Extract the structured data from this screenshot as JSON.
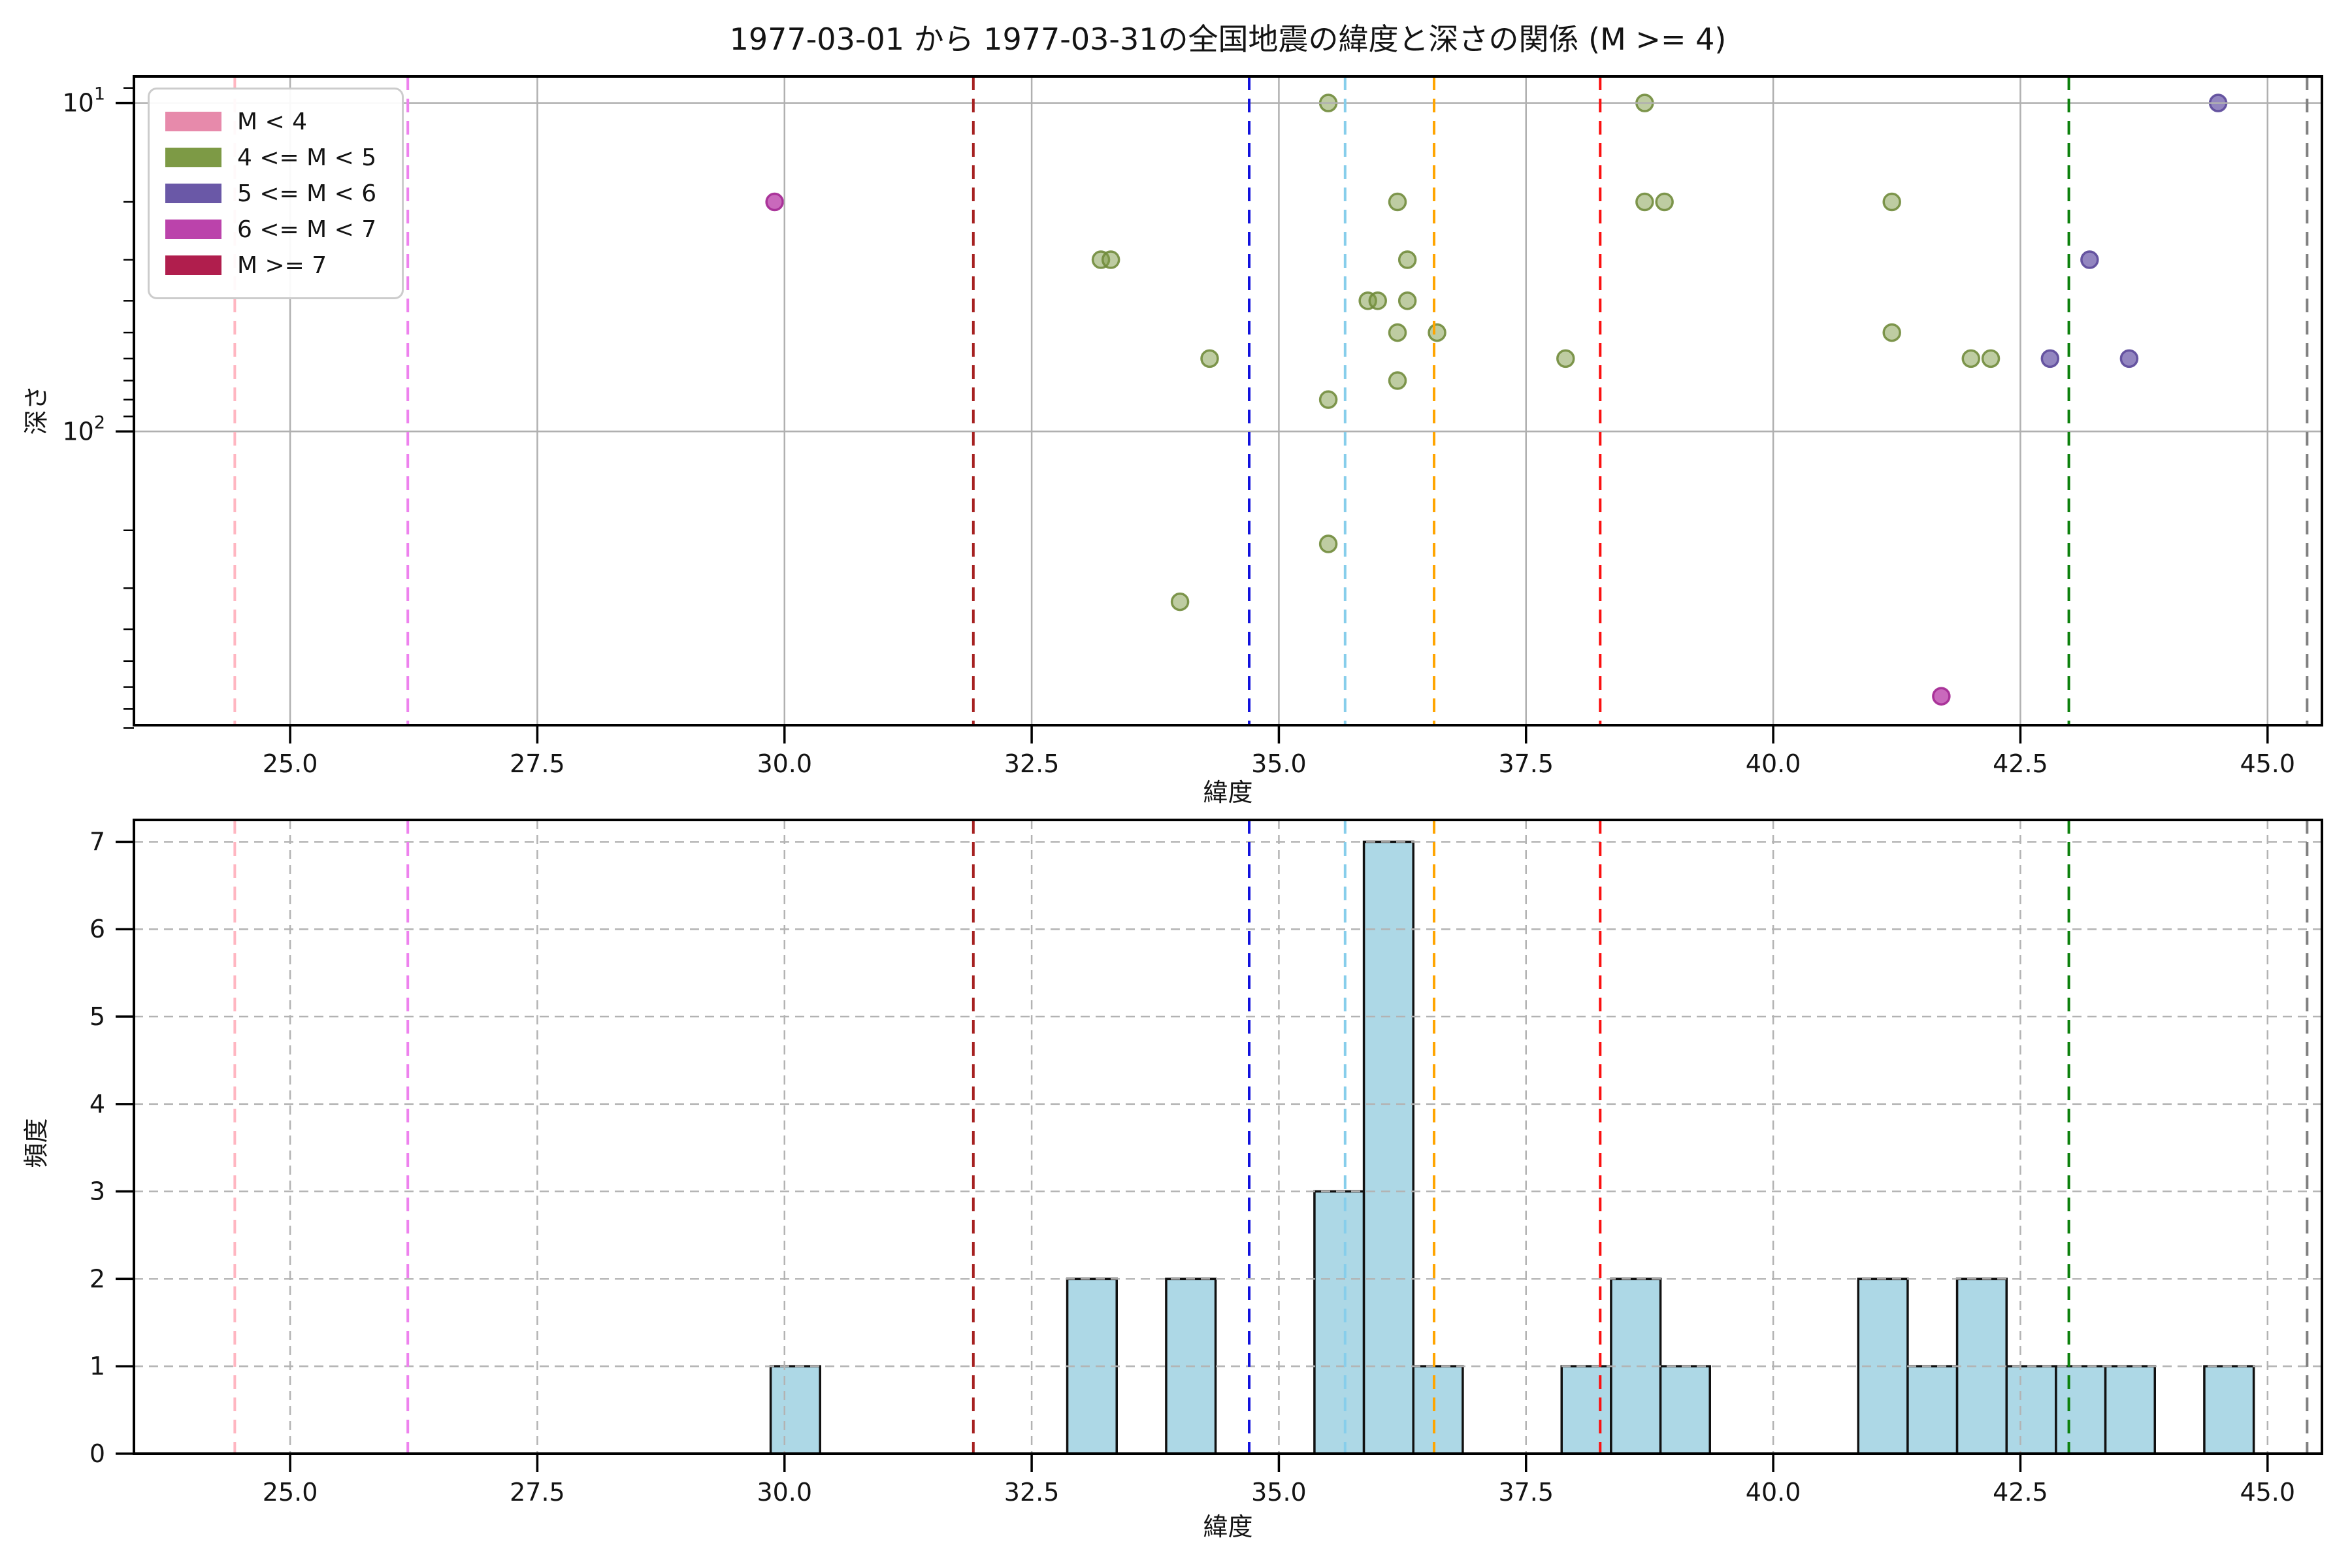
{
  "figure_title": "1977-03-01 から 1977-03-31の全国地震の緯度と深さの関係 (M >= 4)",
  "legend": {
    "items": [
      {
        "label": "M < 4",
        "color": "#e78aab"
      },
      {
        "label": "4 <= M < 5",
        "color": "#7d9a45"
      },
      {
        "label": "5 <= M < 6",
        "color": "#6a58a7"
      },
      {
        "label": "6 <= M < 7",
        "color": "#bb43ab"
      },
      {
        "label": "M >= 7",
        "color": "#b01e4d"
      }
    ]
  },
  "chart_data": [
    {
      "type": "scatter",
      "title": "1977-03-01 から 1977-03-31の全国地震の緯度と深さの関係 (M >= 4)",
      "xlabel": "緯度",
      "ylabel": "深さ",
      "xlim": [
        23.42,
        45.55
      ],
      "ylim": [
        8.3,
        784
      ],
      "yscale": "log",
      "y_inverted": true,
      "grid": "solid",
      "x_ticks": [
        {
          "value": 25.0,
          "label": "25.0"
        },
        {
          "value": 27.5,
          "label": "27.5"
        },
        {
          "value": 30.0,
          "label": "30.0"
        },
        {
          "value": 32.5,
          "label": "32.5"
        },
        {
          "value": 35.0,
          "label": "35.0"
        },
        {
          "value": 37.5,
          "label": "37.5"
        },
        {
          "value": 40.0,
          "label": "40.0"
        },
        {
          "value": 42.5,
          "label": "42.5"
        },
        {
          "value": 45.0,
          "label": "45.0"
        }
      ],
      "y_ticks": [
        {
          "value": 10,
          "base": "10",
          "exponent": "1"
        },
        {
          "value": 100,
          "base": "10",
          "exponent": "2"
        }
      ],
      "y_minor_ticks": [
        9,
        20,
        30,
        40,
        50,
        60,
        70,
        80,
        90,
        200,
        300,
        400,
        500,
        600,
        700,
        800
      ],
      "series": [
        {
          "name": "4 <= M < 5",
          "fill": "rgba(125,154,69,0.5)",
          "stroke": "rgba(113,140,60,0.9)",
          "points": [
            [
              33.2,
              30
            ],
            [
              33.3,
              30
            ],
            [
              34.0,
              330
            ],
            [
              34.3,
              60
            ],
            [
              35.5,
              10
            ],
            [
              35.5,
              80
            ],
            [
              35.5,
              220
            ],
            [
              35.9,
              40
            ],
            [
              36.0,
              40
            ],
            [
              36.2,
              20
            ],
            [
              36.2,
              50
            ],
            [
              36.2,
              70
            ],
            [
              36.3,
              30
            ],
            [
              36.3,
              40
            ],
            [
              36.6,
              50
            ],
            [
              37.9,
              60
            ],
            [
              38.7,
              10
            ],
            [
              38.7,
              20
            ],
            [
              38.9,
              20
            ],
            [
              41.2,
              20
            ],
            [
              41.2,
              50
            ],
            [
              42.0,
              60
            ],
            [
              42.2,
              60
            ]
          ]
        },
        {
          "name": "5 <= M < 6",
          "fill": "rgba(106,88,167,0.72)",
          "stroke": "rgba(96,78,157,0.95)",
          "points": [
            [
              42.8,
              60
            ],
            [
              43.2,
              30
            ],
            [
              43.6,
              60
            ],
            [
              44.5,
              10
            ]
          ]
        },
        {
          "name": "6 <= M < 7",
          "fill": "rgba(187,67,171,0.8)",
          "stroke": "rgba(167,45,150,0.95)",
          "points": [
            [
              29.9,
              20
            ],
            [
              41.7,
              640
            ]
          ]
        }
      ]
    },
    {
      "type": "bar",
      "xlabel": "緯度",
      "ylabel": "頻度",
      "xlim": [
        23.42,
        45.55
      ],
      "ylim": [
        0,
        7.25
      ],
      "grid": "dashed",
      "x_ticks": [
        {
          "value": 25.0,
          "label": "25.0"
        },
        {
          "value": 27.5,
          "label": "27.5"
        },
        {
          "value": 30.0,
          "label": "30.0"
        },
        {
          "value": 32.5,
          "label": "32.5"
        },
        {
          "value": 35.0,
          "label": "35.0"
        },
        {
          "value": 37.5,
          "label": "37.5"
        },
        {
          "value": 40.0,
          "label": "40.0"
        },
        {
          "value": 42.5,
          "label": "42.5"
        },
        {
          "value": 45.0,
          "label": "45.0"
        }
      ],
      "y_ticks": [
        {
          "value": 0,
          "label": "0"
        },
        {
          "value": 1,
          "label": "1"
        },
        {
          "value": 2,
          "label": "2"
        },
        {
          "value": 3,
          "label": "3"
        },
        {
          "value": 4,
          "label": "4"
        },
        {
          "value": 5,
          "label": "5"
        },
        {
          "value": 6,
          "label": "6"
        },
        {
          "value": 7,
          "label": "7"
        }
      ],
      "bin_width": 0.5,
      "bars": [
        {
          "left": 29.86,
          "height": 1
        },
        {
          "left": 32.86,
          "height": 2
        },
        {
          "left": 33.86,
          "height": 2
        },
        {
          "left": 35.36,
          "height": 3
        },
        {
          "left": 35.86,
          "height": 7
        },
        {
          "left": 36.36,
          "height": 1
        },
        {
          "left": 37.86,
          "height": 1
        },
        {
          "left": 38.36,
          "height": 2
        },
        {
          "left": 38.86,
          "height": 1
        },
        {
          "left": 40.86,
          "height": 2
        },
        {
          "left": 41.36,
          "height": 1
        },
        {
          "left": 41.86,
          "height": 2
        },
        {
          "left": 42.36,
          "height": 1
        },
        {
          "left": 42.86,
          "height": 1
        },
        {
          "left": 43.36,
          "height": 1
        },
        {
          "left": 44.36,
          "height": 1
        }
      ],
      "bar_fill": "#add8e6",
      "bar_edge": "#111111"
    }
  ],
  "reference_lines": [
    {
      "x": 24.44,
      "color": "#ffb6c1",
      "name": "pink"
    },
    {
      "x": 26.19,
      "color": "#ee82ee",
      "name": "violet"
    },
    {
      "x": 31.91,
      "color": "#a62121",
      "name": "darkred"
    },
    {
      "x": 34.7,
      "color": "#1010dc",
      "name": "blue"
    },
    {
      "x": 35.67,
      "color": "#87ceeb",
      "name": "skyblue"
    },
    {
      "x": 36.57,
      "color": "#ffa500",
      "name": "orange"
    },
    {
      "x": 38.25,
      "color": "#fb1010",
      "name": "red"
    },
    {
      "x": 42.99,
      "color": "#0b800b",
      "name": "green"
    },
    {
      "x": 45.4,
      "color": "#808080",
      "name": "gray"
    }
  ],
  "style_colors": {
    "grid_top": "#b0b0b0",
    "grid_bottom": "#b3b3b3",
    "spine": "#000000",
    "tick_label": "#141414"
  }
}
